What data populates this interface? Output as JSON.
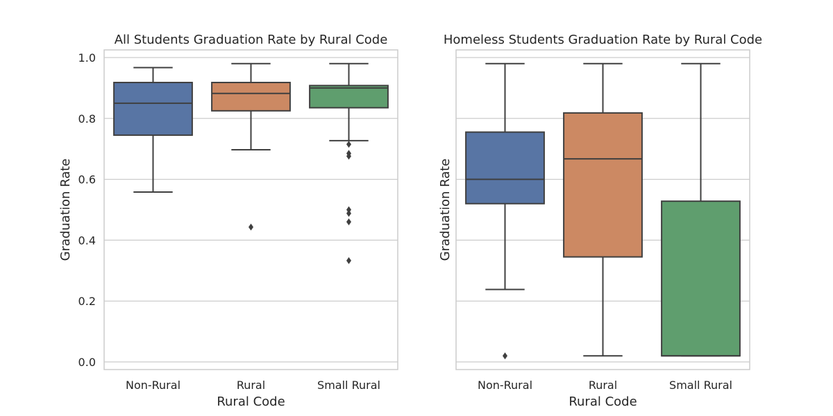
{
  "chart_data": [
    {
      "type": "box",
      "title": "All Students Graduation Rate by Rural Code",
      "xlabel": "Rural Code",
      "ylabel": "Graduation Rate",
      "ylim": [
        -0.025,
        1.025
      ],
      "yticks": [
        "0.0",
        "0.2",
        "0.4",
        "0.6",
        "0.8",
        "1.0"
      ],
      "show_ytick_labels": true,
      "grid": true,
      "categories": [
        "Non-Rural",
        "Rural",
        "Small Rural"
      ],
      "boxes": [
        {
          "category": "Non-Rural",
          "color": "#5875a4",
          "whisker_low": 0.558,
          "q1": 0.745,
          "median": 0.85,
          "q3": 0.918,
          "whisker_high": 0.967,
          "outliers": []
        },
        {
          "category": "Rural",
          "color": "#cc8963",
          "whisker_low": 0.697,
          "q1": 0.825,
          "median": 0.882,
          "q3": 0.918,
          "whisker_high": 0.98,
          "outliers": [
            0.443
          ]
        },
        {
          "category": "Small Rural",
          "color": "#5f9e6e",
          "whisker_low": 0.727,
          "q1": 0.835,
          "median": 0.9,
          "q3": 0.908,
          "whisker_high": 0.98,
          "outliers": [
            0.715,
            0.685,
            0.676,
            0.5,
            0.488,
            0.46,
            0.333
          ]
        }
      ]
    },
    {
      "type": "box",
      "title": "Homeless Students Graduation Rate by Rural Code",
      "xlabel": "Rural Code",
      "ylabel": "Graduation Rate",
      "ylim": [
        -0.025,
        1.025
      ],
      "yticks": [
        "0.0",
        "0.2",
        "0.4",
        "0.6",
        "0.8",
        "1.0"
      ],
      "show_ytick_labels": false,
      "grid": true,
      "categories": [
        "Non-Rural",
        "Rural",
        "Small Rural"
      ],
      "boxes": [
        {
          "category": "Non-Rural",
          "color": "#5875a4",
          "whisker_low": 0.238,
          "q1": 0.52,
          "median": 0.6,
          "q3": 0.755,
          "whisker_high": 0.98,
          "outliers": [
            0.02
          ]
        },
        {
          "category": "Rural",
          "color": "#cc8963",
          "whisker_low": 0.02,
          "q1": 0.345,
          "median": 0.667,
          "q3": 0.818,
          "whisker_high": 0.98,
          "outliers": []
        },
        {
          "category": "Small Rural",
          "color": "#5f9e6e",
          "whisker_low": 0.02,
          "q1": 0.02,
          "median": 0.02,
          "q3": 0.528,
          "whisker_high": 0.98,
          "outliers": []
        }
      ]
    }
  ]
}
